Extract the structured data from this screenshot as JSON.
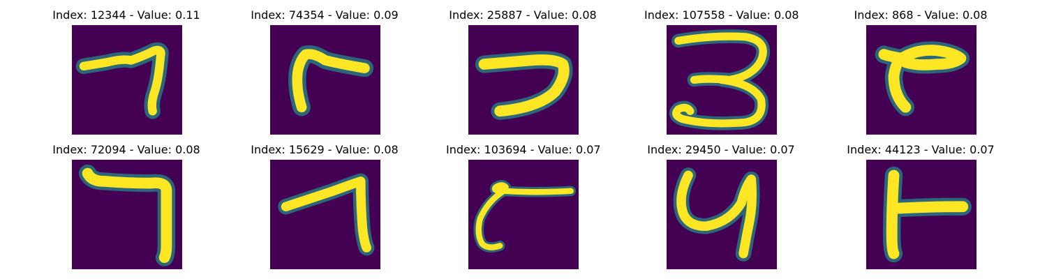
{
  "colors": {
    "background": "#440154",
    "stroke_core": "#fde725",
    "stroke_mid": "#5ec962",
    "stroke_edge": "#21918c"
  },
  "panels": [
    {
      "title": "Index: 12344 - Value: 0.11",
      "glyph": "hooked stroke"
    },
    {
      "title": "Index: 74354 - Value: 0.09",
      "glyph": "r-like stroke"
    },
    {
      "title": "Index: 25887 - Value: 0.08",
      "glyph": "reversed c stroke"
    },
    {
      "title": "Index: 107558 - Value: 0.08",
      "glyph": "digit 3"
    },
    {
      "title": "Index: 868 - Value: 0.08",
      "glyph": "r-like stroke"
    },
    {
      "title": "Index: 72094 - Value: 0.08",
      "glyph": "digit 7"
    },
    {
      "title": "Index: 15629 - Value: 0.08",
      "glyph": "digit 7"
    },
    {
      "title": "Index: 103694 - Value: 0.07",
      "glyph": "curved stroke"
    },
    {
      "title": "Index: 29450 - Value: 0.07",
      "glyph": "digit 4"
    },
    {
      "title": "Index: 44123 - Value: 0.07",
      "glyph": "T-like stroke"
    }
  ]
}
